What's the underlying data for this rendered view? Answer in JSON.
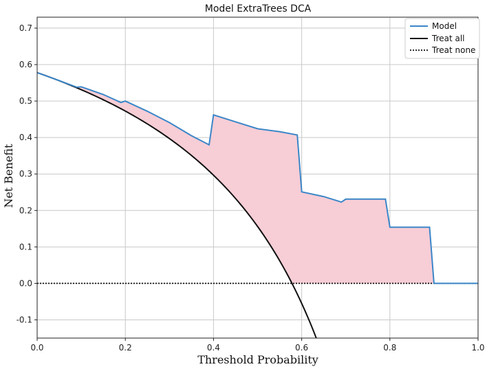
{
  "chart_data": {
    "type": "line",
    "title": "Model ExtraTrees DCA",
    "xlabel": "Threshold Probability",
    "ylabel": "Net Benefit",
    "xlim": [
      0.0,
      1.0
    ],
    "ylim": [
      -0.15,
      0.73
    ],
    "xticks": [
      0.0,
      0.2,
      0.4,
      0.6,
      0.8,
      1.0
    ],
    "xtick_labels": [
      "0.0",
      "0.2",
      "0.4",
      "0.6",
      "0.8",
      "1.0"
    ],
    "yticks": [
      -0.1,
      0.0,
      0.1,
      0.2,
      0.3,
      0.4,
      0.5,
      0.6,
      0.7
    ],
    "ytick_labels": [
      "-0.1",
      "0.0",
      "0.1",
      "0.2",
      "0.3",
      "0.4",
      "0.5",
      "0.6",
      "0.7"
    ],
    "grid": true,
    "legend_position": "top-right",
    "fill_color": "#f7cdd6",
    "series": [
      {
        "name": "Model",
        "color": "#3a86c8",
        "style": "solid",
        "x": [
          0.0,
          0.05,
          0.09,
          0.1,
          0.15,
          0.19,
          0.2,
          0.25,
          0.3,
          0.35,
          0.39,
          0.4,
          0.45,
          0.5,
          0.55,
          0.59,
          0.6,
          0.65,
          0.69,
          0.7,
          0.79,
          0.8,
          0.89,
          0.9,
          1.0
        ],
        "y": [
          0.578,
          0.556,
          0.538,
          0.539,
          0.518,
          0.496,
          0.5,
          0.472,
          0.441,
          0.405,
          0.38,
          0.462,
          0.443,
          0.424,
          0.416,
          0.407,
          0.251,
          0.238,
          0.223,
          0.231,
          0.231,
          0.154,
          0.154,
          0.0,
          0.0
        ]
      },
      {
        "name": "Treat all",
        "color": "#111111",
        "style": "solid",
        "prevalence": 0.578
      },
      {
        "name": "Treat none",
        "color": "#111111",
        "style": "dotted",
        "x": [
          0.0,
          1.0
        ],
        "y": [
          0.0,
          0.0
        ]
      }
    ]
  }
}
